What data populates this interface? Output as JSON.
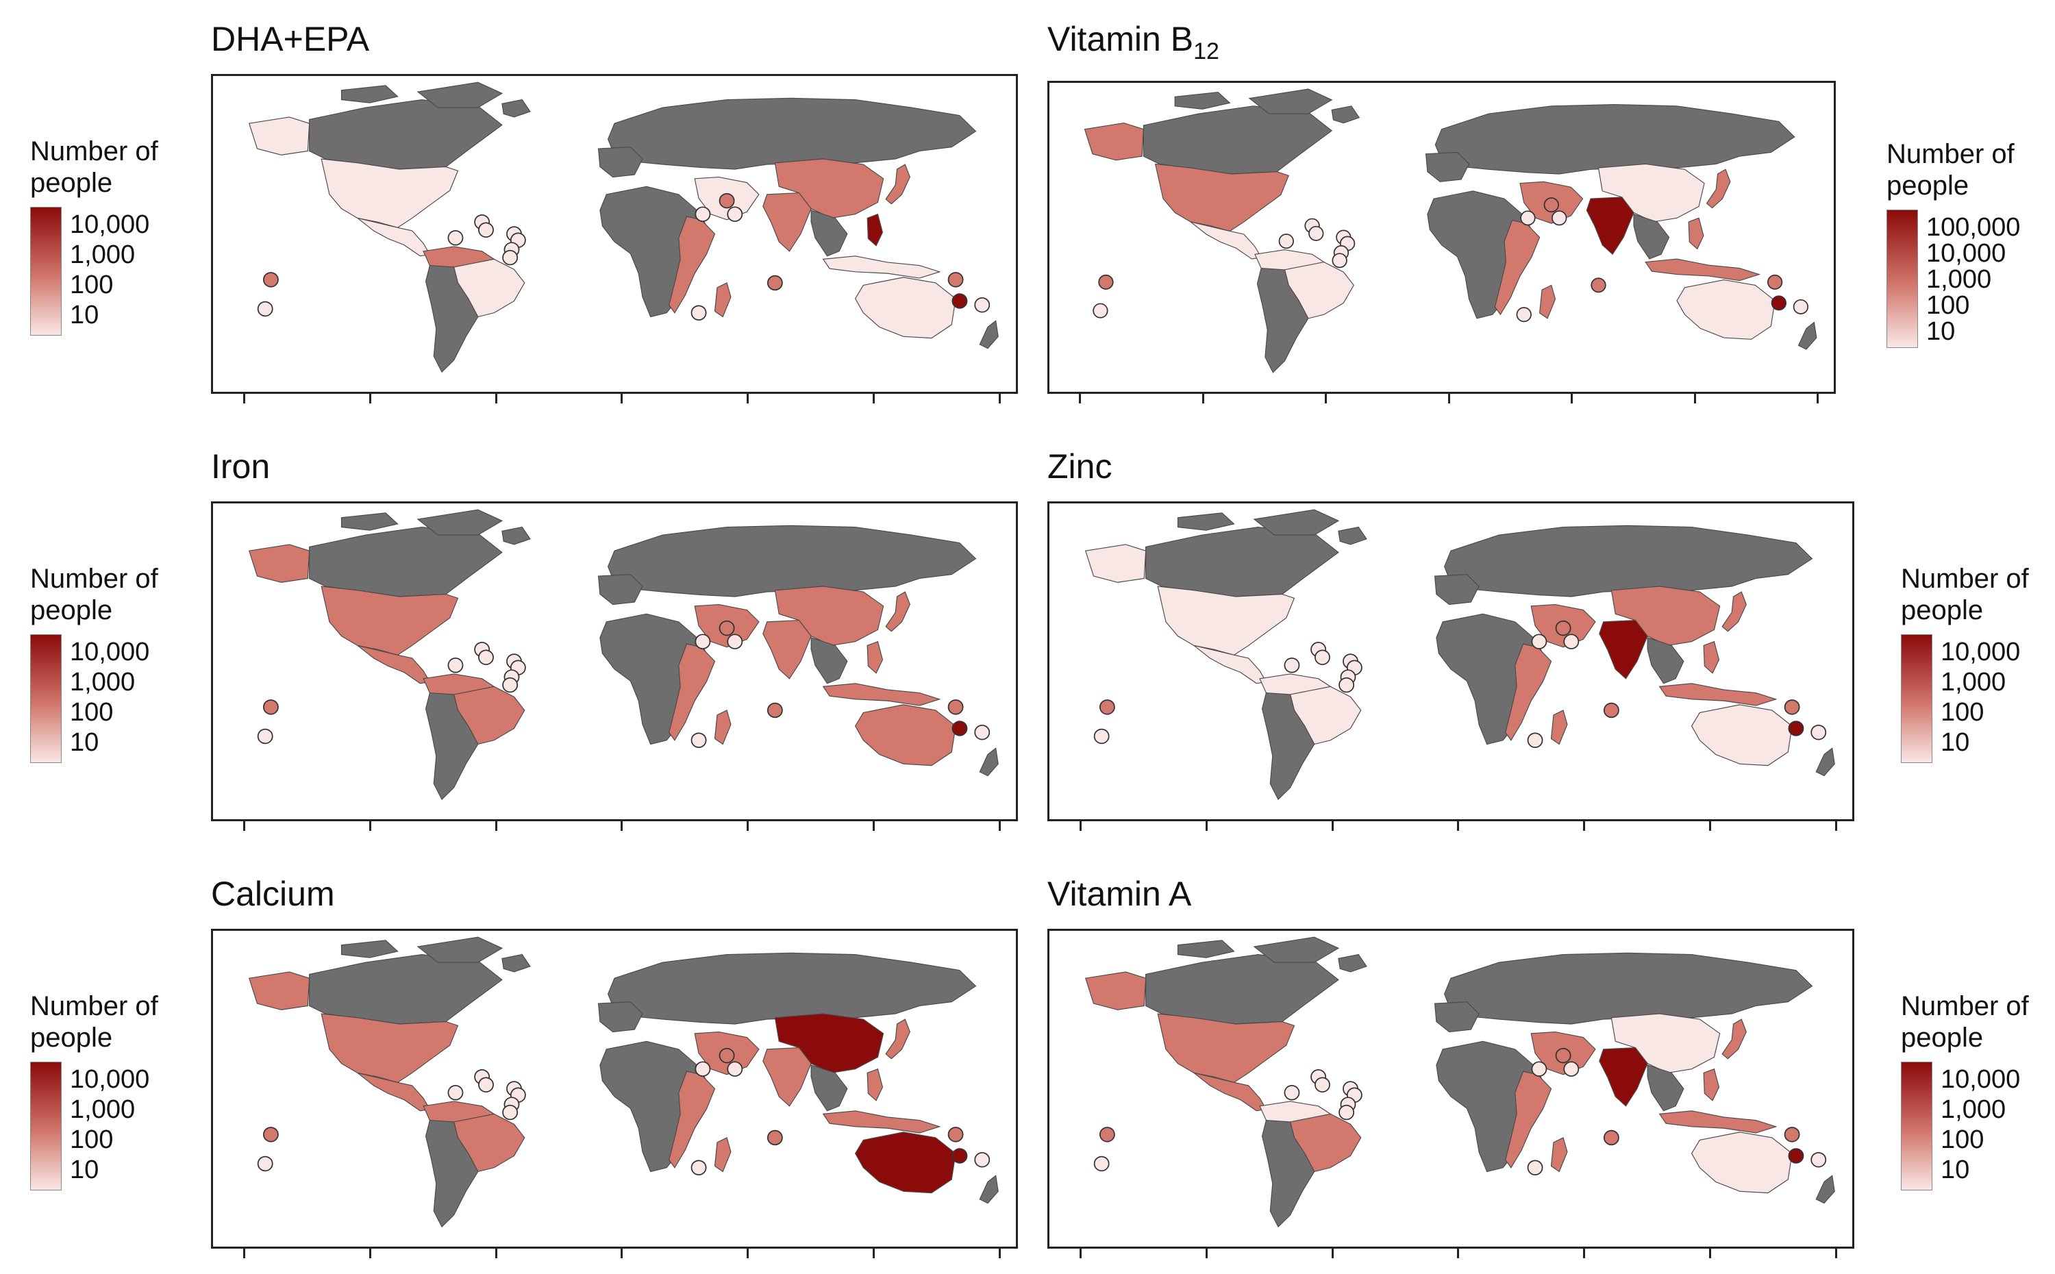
{
  "legend_title_line1": "Number of",
  "legend_title_line2": "people",
  "colors": {
    "land_no_data": "#6e6e6e",
    "ocean": "#ffffff",
    "scale_low": "#f9e7e5",
    "scale_mid": "#d2786d",
    "scale_high": "#8b0a0a",
    "frame": "#222222"
  },
  "panels": [
    {
      "id": "dha-epa",
      "title": "DHA+EPA",
      "title_sub": "",
      "legend_labels": [
        "10,000",
        "1,000",
        "100",
        "10"
      ],
      "colored_regions": {
        "north_america": "low",
        "alaska": "low",
        "central_america": "low",
        "northern_south_america": "mid",
        "brazil": "low",
        "china": "mid",
        "india": "mid",
        "japan": "mid",
        "east_africa": "mid",
        "madagascar": "mid",
        "middle_east": "low",
        "philippines": "high",
        "australia": "low",
        "indonesia": "low"
      }
    },
    {
      "id": "vitamin-b12",
      "title": "Vitamin B",
      "title_sub": "12",
      "legend_labels": [
        "100,000",
        "10,000",
        "1,000",
        "100",
        "10"
      ],
      "colored_regions": {
        "north_america": "mid",
        "alaska": "mid",
        "central_america": "low",
        "northern_south_america": "low",
        "brazil": "low",
        "china": "low",
        "india": "high",
        "japan": "mid",
        "east_africa": "mid",
        "madagascar": "mid",
        "middle_east": "mid",
        "philippines": "mid",
        "australia": "low",
        "indonesia": "mid"
      }
    },
    {
      "id": "iron",
      "title": "Iron",
      "title_sub": "",
      "legend_labels": [
        "10,000",
        "1,000",
        "100",
        "10"
      ],
      "colored_regions": {
        "north_america": "mid",
        "alaska": "mid",
        "central_america": "mid",
        "northern_south_america": "mid",
        "brazil": "mid",
        "china": "mid",
        "india": "mid",
        "japan": "mid",
        "east_africa": "mid",
        "madagascar": "mid",
        "middle_east": "mid",
        "philippines": "mid",
        "australia": "mid",
        "indonesia": "mid"
      }
    },
    {
      "id": "zinc",
      "title": "Zinc",
      "title_sub": "",
      "legend_labels": [
        "10,000",
        "1,000",
        "100",
        "10"
      ],
      "colored_regions": {
        "north_america": "low",
        "alaska": "low",
        "central_america": "low",
        "northern_south_america": "low",
        "brazil": "low",
        "china": "mid",
        "india": "high",
        "japan": "mid",
        "east_africa": "mid",
        "madagascar": "mid",
        "middle_east": "mid",
        "philippines": "mid",
        "australia": "low",
        "indonesia": "mid"
      }
    },
    {
      "id": "calcium",
      "title": "Calcium",
      "title_sub": "",
      "legend_labels": [
        "10,000",
        "1,000",
        "100",
        "10"
      ],
      "colored_regions": {
        "north_america": "mid",
        "alaska": "mid",
        "central_america": "mid",
        "northern_south_america": "mid",
        "brazil": "mid",
        "china": "high",
        "india": "mid",
        "japan": "mid",
        "east_africa": "mid",
        "madagascar": "mid",
        "middle_east": "mid",
        "philippines": "mid",
        "australia": "high",
        "indonesia": "mid"
      }
    },
    {
      "id": "vitamin-a",
      "title": "Vitamin A",
      "title_sub": "",
      "legend_labels": [
        "10,000",
        "1,000",
        "100",
        "10"
      ],
      "colored_regions": {
        "north_america": "mid",
        "alaska": "mid",
        "central_america": "mid",
        "northern_south_america": "low",
        "brazil": "mid",
        "china": "low",
        "india": "high",
        "japan": "mid",
        "east_africa": "mid",
        "madagascar": "mid",
        "middle_east": "mid",
        "philippines": "mid",
        "australia": "low",
        "indonesia": "mid"
      }
    }
  ]
}
